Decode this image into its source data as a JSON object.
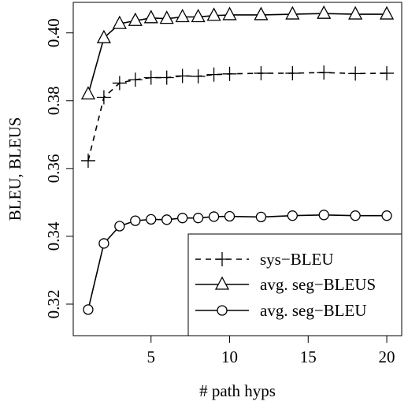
{
  "chart_data": {
    "type": "line",
    "title": "",
    "xlabel": "# path hyps",
    "ylabel": "BLEU, BLEUS",
    "xlim": [
      0.05,
      20.95
    ],
    "ylim": [
      0.3107,
      0.409
    ],
    "xticks": [
      5,
      10,
      15,
      20
    ],
    "xtick_labels": [
      "5",
      "10",
      "15",
      "20"
    ],
    "yticks": [
      0.32,
      0.34,
      0.36,
      0.38,
      0.4
    ],
    "ytick_labels": [
      "0.32",
      "0.34",
      "0.36",
      "0.38",
      "0.40"
    ],
    "grid": false,
    "legend_position": "bottom-right",
    "series": [
      {
        "name": "sys−BLEU",
        "marker": "plus",
        "line_style": "dashed",
        "x": [
          1,
          2,
          3,
          4,
          5,
          6,
          7,
          8,
          9,
          10,
          12,
          14,
          16,
          18,
          20
        ],
        "y": [
          0.3623,
          0.381,
          0.3852,
          0.3862,
          0.3868,
          0.3868,
          0.3873,
          0.3872,
          0.3877,
          0.3879,
          0.3881,
          0.3881,
          0.3883,
          0.388,
          0.3881
        ]
      },
      {
        "name": "avg. seg−BLEUS",
        "marker": "triangle",
        "line_style": "solid",
        "x": [
          1,
          2,
          3,
          4,
          5,
          6,
          7,
          8,
          9,
          10,
          12,
          14,
          16,
          18,
          20
        ],
        "y": [
          0.3819,
          0.3985,
          0.4027,
          0.4036,
          0.4044,
          0.4042,
          0.4047,
          0.4047,
          0.4051,
          0.4053,
          0.4053,
          0.4055,
          0.4057,
          0.4055,
          0.4055
        ]
      },
      {
        "name": "avg. seg−BLEU",
        "marker": "circle",
        "line_style": "solid",
        "x": [
          1,
          2,
          3,
          4,
          5,
          6,
          7,
          8,
          9,
          10,
          12,
          14,
          16,
          18,
          20
        ],
        "y": [
          0.3184,
          0.3379,
          0.343,
          0.3446,
          0.345,
          0.3449,
          0.3454,
          0.3454,
          0.3458,
          0.3459,
          0.3457,
          0.3461,
          0.3463,
          0.3461,
          0.3461
        ]
      }
    ],
    "colors": {
      "line": "#000000",
      "background": "#ffffff"
    }
  }
}
